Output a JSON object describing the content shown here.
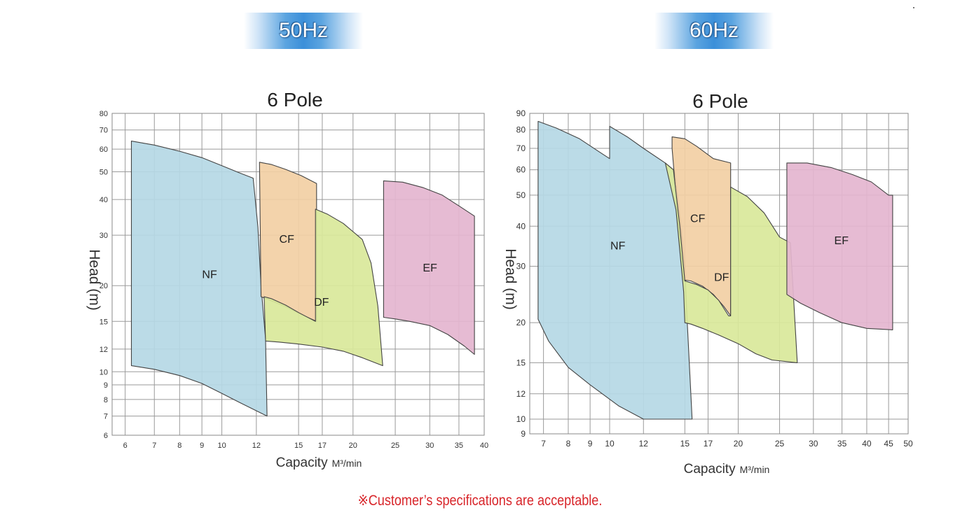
{
  "badges": {
    "left": "50Hz",
    "right": "60Hz"
  },
  "footnote": "※Customer’s specifications are acceptable.",
  "chart_data": [
    {
      "type": "area",
      "frequency": "50Hz",
      "title": "6 Pole",
      "xlabel": "Capacity",
      "xunit": "M³/min",
      "ylabel": "Head (m)",
      "xscale": "log",
      "yscale": "log",
      "xlim": [
        5.6,
        40
      ],
      "ylim": [
        6,
        80
      ],
      "grid": true,
      "xticks": [
        6,
        7,
        8,
        9,
        10,
        12,
        15,
        17,
        20,
        25,
        30,
        35,
        40
      ],
      "yticks": [
        6,
        7,
        8,
        9,
        10,
        12,
        15,
        20,
        30,
        40,
        50,
        60,
        70,
        80
      ],
      "series": [
        {
          "name": "NF",
          "color": "#b5d8e5",
          "points": [
            [
              6.2,
              64
            ],
            [
              7,
              62
            ],
            [
              8,
              59
            ],
            [
              9,
              56
            ],
            [
              10,
              52.5
            ],
            [
              11,
              49.5
            ],
            [
              11.8,
              47.5
            ],
            [
              12.1,
              32
            ],
            [
              12.3,
              20
            ],
            [
              12.6,
              13
            ],
            [
              12.7,
              7
            ],
            [
              11,
              7.8
            ],
            [
              10,
              8.4
            ],
            [
              9,
              9.1
            ],
            [
              8,
              9.7
            ],
            [
              7,
              10.2
            ],
            [
              6.2,
              10.5
            ]
          ]
        },
        {
          "name": "CF",
          "color": "#f2cfa4",
          "points": [
            [
              12.2,
              54
            ],
            [
              13,
              53
            ],
            [
              14,
              51
            ],
            [
              15.2,
              48.5
            ],
            [
              16.5,
              45.5
            ],
            [
              16.5,
              15
            ],
            [
              15,
              16
            ],
            [
              14,
              16.9
            ],
            [
              13,
              17.7
            ],
            [
              12.3,
              18.3
            ]
          ]
        },
        {
          "name": "DF",
          "color": "#d9e89a",
          "points": [
            [
              12.5,
              18.3
            ],
            [
              13,
              18
            ],
            [
              14,
              17.1
            ],
            [
              15,
              16.1
            ],
            [
              16.4,
              15
            ],
            [
              16.4,
              37
            ],
            [
              17.5,
              35.5
            ],
            [
              19,
              33
            ],
            [
              21,
              29
            ],
            [
              22,
              24
            ],
            [
              22.8,
              17
            ],
            [
              23.4,
              10.5
            ],
            [
              21,
              11.2
            ],
            [
              19,
              11.8
            ],
            [
              17,
              12.2
            ],
            [
              15,
              12.5
            ],
            [
              13.5,
              12.7
            ],
            [
              12.6,
              12.8
            ]
          ]
        },
        {
          "name": "EF",
          "color": "#e4b5cf",
          "points": [
            [
              23.5,
              46.5
            ],
            [
              26,
              46
            ],
            [
              29,
              44
            ],
            [
              32,
              41.5
            ],
            [
              35,
              38
            ],
            [
              38,
              35
            ],
            [
              38,
              11.5
            ],
            [
              36,
              12.3
            ],
            [
              33,
              13.5
            ],
            [
              30,
              14.5
            ],
            [
              27,
              15
            ],
            [
              25,
              15.3
            ],
            [
              23.5,
              15.5
            ]
          ]
        }
      ]
    },
    {
      "type": "area",
      "frequency": "60Hz",
      "title": "6 Pole",
      "xlabel": "Capacity",
      "xunit": "M³/min",
      "ylabel": "Head (m)",
      "xscale": "log",
      "yscale": "log",
      "xlim": [
        6.5,
        50
      ],
      "ylim": [
        9,
        90
      ],
      "grid": true,
      "xticks": [
        7,
        8,
        9,
        10,
        12,
        15,
        17,
        20,
        25,
        30,
        35,
        40,
        45,
        50
      ],
      "yticks": [
        9,
        10,
        12,
        15,
        20,
        30,
        40,
        50,
        60,
        70,
        80,
        90
      ],
      "series": [
        {
          "name": "NF",
          "color": "#b5d8e5",
          "points": [
            [
              6.8,
              85
            ],
            [
              7.5,
              81
            ],
            [
              8.5,
              75
            ],
            [
              9.5,
              68
            ],
            [
              10,
              65
            ],
            [
              10,
              82
            ],
            [
              11,
              76
            ],
            [
              12,
              70
            ],
            [
              13.5,
              63
            ],
            [
              14.2,
              59.5
            ],
            [
              14.7,
              40
            ],
            [
              15,
              30
            ],
            [
              15.2,
              20
            ],
            [
              15.6,
              10
            ],
            [
              12,
              10
            ],
            [
              10.5,
              11
            ],
            [
              9,
              12.8
            ],
            [
              8,
              14.5
            ],
            [
              7.2,
              17.5
            ],
            [
              6.8,
              20.5
            ]
          ]
        },
        {
          "name": "CF",
          "color": "#f2cfa4",
          "points": [
            [
              14,
              76
            ],
            [
              15,
              75
            ],
            [
              16,
              71
            ],
            [
              17.5,
              65
            ],
            [
              19.2,
              63
            ],
            [
              19.2,
              21
            ],
            [
              18.5,
              22.5
            ],
            [
              17.5,
              24.5
            ],
            [
              16.5,
              26
            ],
            [
              15.5,
              27
            ],
            [
              14.9,
              27.2
            ],
            [
              14.5,
              40
            ],
            [
              14.2,
              56
            ],
            [
              14,
              70
            ]
          ]
        },
        {
          "name": "DF",
          "color": "#d9e89a",
          "points": [
            [
              13.5,
              63
            ],
            [
              14.1,
              60
            ],
            [
              14.6,
              40
            ],
            [
              15,
              27
            ],
            [
              16,
              26.3
            ],
            [
              17,
              25.3
            ],
            [
              18,
              23.5
            ],
            [
              19,
              21
            ],
            [
              19.2,
              21
            ],
            [
              19.2,
              53
            ],
            [
              21,
              49.5
            ],
            [
              23,
              44
            ],
            [
              25,
              37
            ],
            [
              26.5,
              35.5
            ],
            [
              27.5,
              15
            ],
            [
              24,
              15.3
            ],
            [
              22,
              16
            ],
            [
              20,
              17.2
            ],
            [
              18,
              18.3
            ],
            [
              16.5,
              19.2
            ],
            [
              15.5,
              19.8
            ],
            [
              15,
              20
            ],
            [
              14.9,
              25
            ],
            [
              14.3,
              45
            ]
          ]
        },
        {
          "name": "EF",
          "color": "#e4b5cf",
          "points": [
            [
              26,
              63
            ],
            [
              29,
              63
            ],
            [
              33,
              61
            ],
            [
              37,
              58
            ],
            [
              41,
              55
            ],
            [
              45,
              50
            ],
            [
              46,
              50
            ],
            [
              46,
              19
            ],
            [
              40,
              19.2
            ],
            [
              35,
              20
            ],
            [
              31,
              21.5
            ],
            [
              28,
              23
            ],
            [
              26,
              24.5
            ]
          ]
        }
      ]
    }
  ]
}
